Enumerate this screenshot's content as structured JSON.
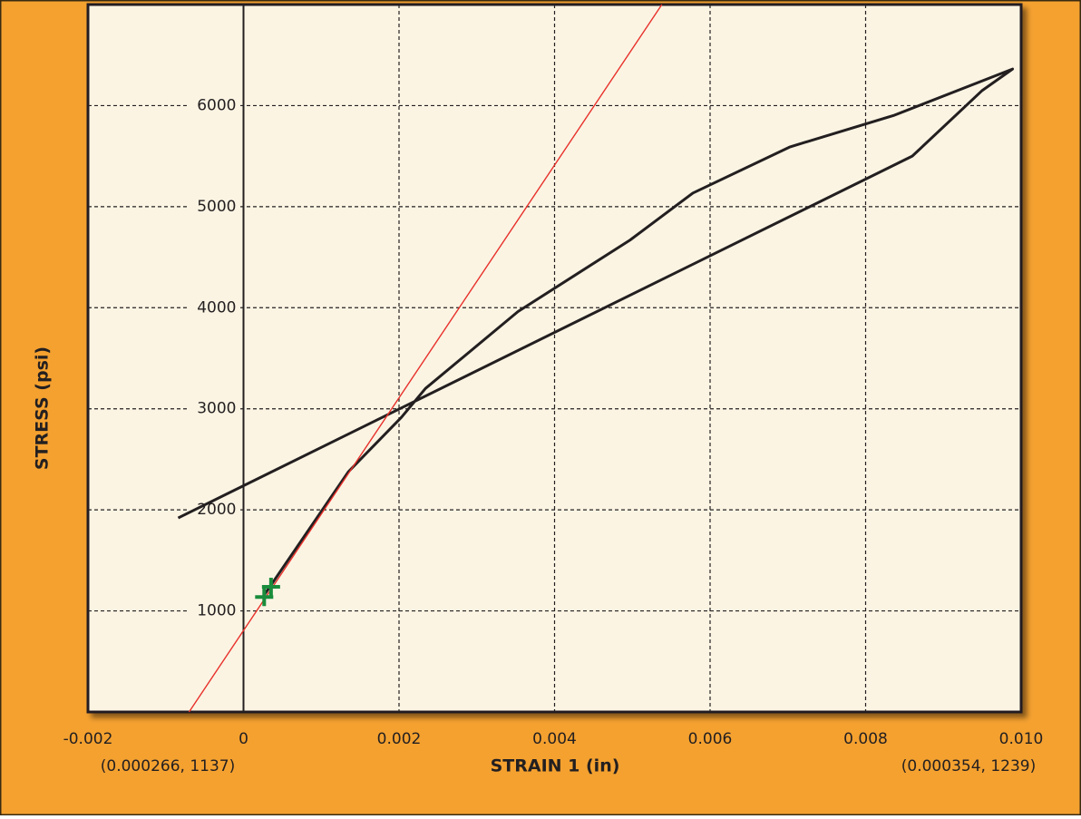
{
  "chart_data": {
    "type": "line",
    "xlabel": "STRAIN 1 (in)",
    "ylabel": "STRESS (psi)",
    "annotations": [
      "(0.000266, 1137)",
      "(0.000354, 1239)"
    ],
    "xlim": [
      -0.002,
      0.01
    ],
    "ylim": [
      0,
      7000
    ],
    "xticks": [
      -0.002,
      0,
      0.002,
      0.004,
      0.006,
      0.008,
      {
        "value": 0.01,
        "label": "0.010"
      }
    ],
    "yticks": [
      1000,
      2000,
      3000,
      4000,
      5000,
      6000
    ],
    "grid": true,
    "series": [
      {
        "color": "#231f20",
        "x": [
          0.00026,
          0.00135,
          0.00203,
          0.00234,
          0.00353,
          0.00497,
          0.00578,
          0.00703,
          0.00837,
          0.00989,
          0.0095,
          0.0086,
          -0.00084
        ],
        "values": [
          1150,
          2378,
          2915,
          3201,
          3962,
          4669,
          5135,
          5592,
          5905,
          6362,
          6150,
          5500,
          1920
        ]
      },
      {
        "color": "#e8302a",
        "x": [
          -0.0007,
          0.00538
        ],
        "values": [
          0,
          7000
        ]
      }
    ],
    "points": {
      "color": "#1a8c3c",
      "x": [
        0.000266,
        0.000354
      ],
      "values": [
        1137,
        1239
      ]
    }
  }
}
